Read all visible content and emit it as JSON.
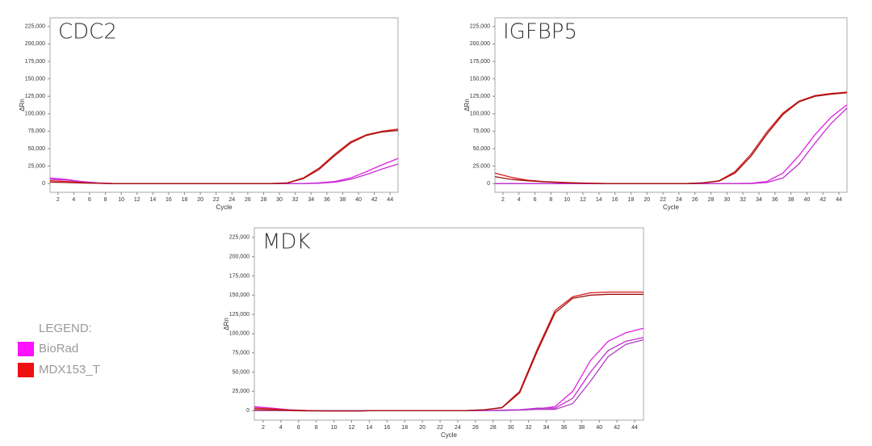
{
  "chart_data": [
    {
      "type": "line",
      "title": "CDC2",
      "xlabel": "Cycle",
      "ylabel": "ΔRn",
      "x": [
        1,
        3,
        5,
        7,
        9,
        11,
        13,
        15,
        17,
        19,
        21,
        23,
        25,
        27,
        29,
        31,
        33,
        35,
        37,
        39,
        41,
        43,
        45
      ],
      "xlim": [
        1,
        45
      ],
      "ylim": [
        -12500,
        237500
      ],
      "xticks": [
        2,
        4,
        6,
        8,
        10,
        12,
        14,
        16,
        18,
        20,
        22,
        24,
        26,
        28,
        30,
        32,
        34,
        36,
        38,
        40,
        42,
        44
      ],
      "yticks": [
        0,
        {
          "value": 25000,
          "label": "25,000"
        },
        {
          "value": 50000,
          "label": "50,000"
        },
        {
          "value": 75000,
          "label": "75,000"
        },
        {
          "value": 100000,
          "label": "100,000"
        },
        {
          "value": 125000,
          "label": "125,000"
        },
        {
          "value": 150000,
          "label": "150,000"
        },
        {
          "value": 175000,
          "label": "175,000"
        },
        {
          "value": 200000,
          "label": "200,000"
        },
        {
          "value": 225000,
          "label": "225,000"
        }
      ],
      "series": [
        {
          "color": "#e020e0",
          "values": [
            8000,
            6000,
            3000,
            1000,
            0,
            0,
            0,
            0,
            0,
            0,
            0,
            0,
            0,
            0,
            0,
            0,
            0,
            1000,
            3000,
            8000,
            17000,
            27000,
            36000
          ]
        },
        {
          "color": "#c030d0",
          "values": [
            6000,
            5000,
            2500,
            800,
            0,
            0,
            0,
            0,
            0,
            0,
            0,
            0,
            0,
            0,
            0,
            0,
            0,
            500,
            2000,
            6000,
            13000,
            21000,
            28000
          ]
        },
        {
          "color": "#d81818",
          "values": [
            4000,
            3000,
            1500,
            500,
            0,
            0,
            0,
            0,
            0,
            0,
            0,
            0,
            0,
            0,
            0,
            1000,
            8000,
            22000,
            42000,
            60000,
            70000,
            75000,
            78000
          ]
        },
        {
          "color": "#a01010",
          "values": [
            2000,
            1500,
            800,
            300,
            0,
            0,
            0,
            0,
            0,
            0,
            0,
            0,
            0,
            0,
            0,
            800,
            7000,
            20000,
            40000,
            58000,
            69000,
            74000,
            76000
          ]
        }
      ]
    },
    {
      "type": "line",
      "title": "IGFBP5",
      "xlabel": "Cycle",
      "ylabel": "ΔRn",
      "x": [
        1,
        3,
        5,
        7,
        9,
        11,
        13,
        15,
        17,
        19,
        21,
        23,
        25,
        27,
        29,
        31,
        33,
        35,
        37,
        39,
        41,
        43,
        45
      ],
      "xlim": [
        1,
        45
      ],
      "ylim": [
        -12500,
        237500
      ],
      "xticks": [
        2,
        4,
        6,
        8,
        10,
        12,
        14,
        16,
        18,
        20,
        22,
        24,
        26,
        28,
        30,
        32,
        34,
        36,
        38,
        40,
        42,
        44
      ],
      "yticks": [
        0,
        {
          "value": 25000,
          "label": "25,000"
        },
        {
          "value": 50000,
          "label": "50,000"
        },
        {
          "value": 75000,
          "label": "75,000"
        },
        {
          "value": 100000,
          "label": "100,000"
        },
        {
          "value": 125000,
          "label": "125,000"
        },
        {
          "value": 150000,
          "label": "150,000"
        },
        {
          "value": 175000,
          "label": "175,000"
        },
        {
          "value": 200000,
          "label": "200,000"
        },
        {
          "value": 225000,
          "label": "225,000"
        }
      ],
      "series": [
        {
          "color": "#e020e0",
          "values": [
            0,
            0,
            0,
            0,
            0,
            0,
            0,
            0,
            0,
            0,
            0,
            0,
            0,
            0,
            0,
            0,
            500,
            3000,
            15000,
            40000,
            70000,
            95000,
            113000
          ]
        },
        {
          "color": "#c030d0",
          "values": [
            0,
            0,
            0,
            0,
            0,
            0,
            0,
            0,
            0,
            0,
            0,
            0,
            0,
            0,
            0,
            0,
            0,
            1500,
            8000,
            28000,
            58000,
            86000,
            108000
          ]
        },
        {
          "color": "#d81818",
          "values": [
            15000,
            9000,
            5000,
            3000,
            2000,
            1000,
            500,
            0,
            0,
            0,
            0,
            0,
            0,
            1000,
            4000,
            17000,
            42000,
            74000,
            101000,
            118000,
            126000,
            129000,
            131000
          ]
        },
        {
          "color": "#a01010",
          "values": [
            10000,
            6000,
            4000,
            2500,
            1500,
            800,
            300,
            0,
            0,
            0,
            0,
            0,
            0,
            1000,
            3500,
            15000,
            39000,
            71000,
            99000,
            117000,
            125000,
            128000,
            130000
          ]
        }
      ]
    },
    {
      "type": "line",
      "title": "MDK",
      "xlabel": "Cycle",
      "ylabel": "ΔRn",
      "x": [
        1,
        3,
        5,
        7,
        9,
        11,
        13,
        15,
        17,
        19,
        21,
        23,
        25,
        27,
        29,
        31,
        33,
        35,
        37,
        39,
        41,
        43,
        45
      ],
      "xlim": [
        1,
        45
      ],
      "ylim": [
        -12500,
        237500
      ],
      "xticks": [
        2,
        4,
        6,
        8,
        10,
        12,
        14,
        16,
        18,
        20,
        22,
        24,
        26,
        28,
        30,
        32,
        34,
        36,
        38,
        40,
        42,
        44
      ],
      "yticks": [
        0,
        {
          "value": 25000,
          "label": "25,000"
        },
        {
          "value": 50000,
          "label": "50,000"
        },
        {
          "value": 75000,
          "label": "75,000"
        },
        {
          "value": 100000,
          "label": "100,000"
        },
        {
          "value": 125000,
          "label": "125,000"
        },
        {
          "value": 150000,
          "label": "150,000"
        },
        {
          "value": 175000,
          "label": "175,000"
        },
        {
          "value": 200000,
          "label": "200,000"
        },
        {
          "value": 225000,
          "label": "225,000"
        }
      ],
      "series": [
        {
          "color": "#e020e0",
          "values": [
            5000,
            3000,
            1000,
            0,
            0,
            0,
            0,
            0,
            0,
            0,
            0,
            0,
            0,
            0,
            500,
            1000,
            2000,
            5000,
            25000,
            65000,
            90000,
            101000,
            107000
          ]
        },
        {
          "color": "#c030d0",
          "values": [
            3000,
            2000,
            500,
            0,
            0,
            0,
            0,
            0,
            0,
            0,
            0,
            0,
            0,
            0,
            500,
            1000,
            3000,
            3000,
            16000,
            50000,
            78000,
            90000,
            95000
          ]
        },
        {
          "color": "#b040c0",
          "values": [
            0,
            0,
            0,
            0,
            0,
            0,
            0,
            0,
            0,
            0,
            0,
            0,
            0,
            0,
            0,
            500,
            1500,
            1500,
            9000,
            38000,
            70000,
            86000,
            92000
          ]
        },
        {
          "color": "#d81818",
          "values": [
            3000,
            2000,
            500,
            0,
            -500,
            -500,
            -500,
            0,
            0,
            0,
            0,
            0,
            0,
            1000,
            4000,
            25000,
            80000,
            130000,
            148000,
            153000,
            154000,
            154000,
            154000
          ]
        },
        {
          "color": "#a01010",
          "values": [
            1000,
            500,
            0,
            -500,
            -500,
            -500,
            -500,
            0,
            0,
            0,
            0,
            0,
            0,
            1000,
            3500,
            23000,
            77000,
            127000,
            146000,
            150000,
            151000,
            151000,
            151000
          ]
        }
      ]
    }
  ],
  "legend": {
    "title": "LEGEND:",
    "items": [
      {
        "name": "BioRad",
        "color": "#ff10ff"
      },
      {
        "name": "MDX153_T",
        "color": "#ee1111"
      }
    ]
  }
}
